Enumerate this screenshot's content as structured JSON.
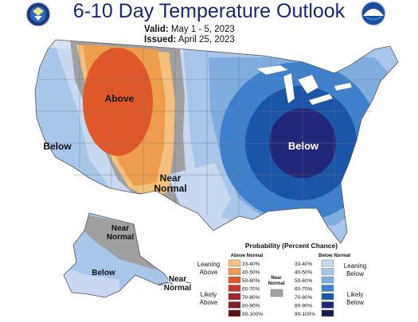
{
  "header": {
    "title": "6-10 Day Temperature Outlook",
    "valid_label": "Valid:",
    "valid_value": "May 1 - 5, 2023",
    "issued_label": "Issued:",
    "issued_value": "April 25, 2023"
  },
  "logos": {
    "left": "doc-seal",
    "right": "noaa"
  },
  "map_labels": {
    "above": "Above",
    "below_west": "Below",
    "near_normal_sw_1": "Near",
    "near_normal_sw_2": "Normal",
    "below_east": "Below",
    "alaska_near_1": "Near",
    "alaska_near_2": "Normal",
    "alaska_below": "Below",
    "aleutian_near_1": "Near",
    "aleutian_near_2": "Normal"
  },
  "legend": {
    "title": "Probability (Percent Chance)",
    "above_header": "Above Normal",
    "below_header": "Below Normal",
    "near_normal_1": "Near",
    "near_normal_2": "Normal",
    "leaning_above_1": "Leaning",
    "leaning_above_2": "Above",
    "likely_above_1": "Likely",
    "likely_above_2": "Above",
    "leaning_below_1": "Leaning",
    "leaning_below_2": "Below",
    "likely_below_1": "Likely",
    "likely_below_2": "Below",
    "above_ranges": [
      "33-40%",
      "40-50%",
      "50-60%",
      "60-70%",
      "70-80%",
      "80-90%",
      "90-100%"
    ],
    "below_ranges": [
      "33-40%",
      "40-50%",
      "50-60%",
      "60-70%",
      "70-80%",
      "80-90%",
      "90-100%"
    ],
    "above_colors": [
      "#f5c07e",
      "#ee9d4f",
      "#e0582a",
      "#c8382a",
      "#a3242a",
      "#7e1d23",
      "#5a1216"
    ],
    "below_colors": [
      "#c8d8f0",
      "#a7c6ea",
      "#7fadde",
      "#3f80cd",
      "#1a55a7",
      "#22277a",
      "#1b1a4e"
    ],
    "near_color": "#a0a0a0"
  }
}
